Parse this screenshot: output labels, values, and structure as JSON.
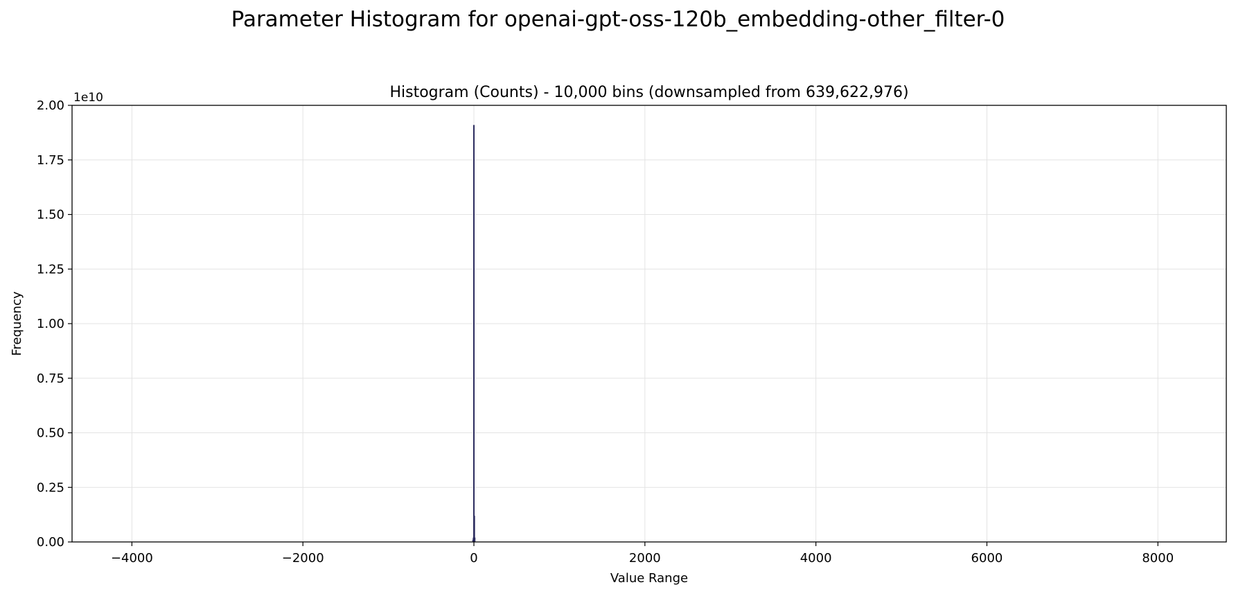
{
  "suptitle": "Parameter Histogram for openai-gpt-oss-120b_embedding-other_filter-0",
  "chart_data": {
    "type": "bar",
    "title": "Histogram (Counts) - 10,000 bins (downsampled from 639,622,976)",
    "xlabel": "Value Range",
    "ylabel": "Frequency",
    "y_offset_text": "1e10",
    "xlim": [
      -4700,
      8800
    ],
    "ylim": [
      0,
      20000000000.0
    ],
    "x_ticks": [
      -4000,
      -2000,
      0,
      2000,
      4000,
      6000,
      8000
    ],
    "x_tick_labels": [
      "−4000",
      "−2000",
      "0",
      "2000",
      "4000",
      "6000",
      "8000"
    ],
    "y_ticks": [
      0,
      2500000000.0,
      5000000000.0,
      7500000000.0,
      10000000000.0,
      12500000000.0,
      15000000000.0,
      17500000000.0,
      20000000000.0
    ],
    "y_tick_labels": [
      "0.00",
      "0.25",
      "0.50",
      "0.75",
      "1.00",
      "1.25",
      "1.50",
      "1.75",
      "2.00"
    ],
    "grid": true,
    "bar_color": "#2b2b5e",
    "bins": [
      {
        "x": -10,
        "y": 100000000.0
      },
      {
        "x": -5,
        "y": 200000000.0
      },
      {
        "x": 0,
        "y": 19100000000.0
      },
      {
        "x": 5,
        "y": 1200000000.0
      },
      {
        "x": 10,
        "y": 200000000.0
      }
    ]
  }
}
